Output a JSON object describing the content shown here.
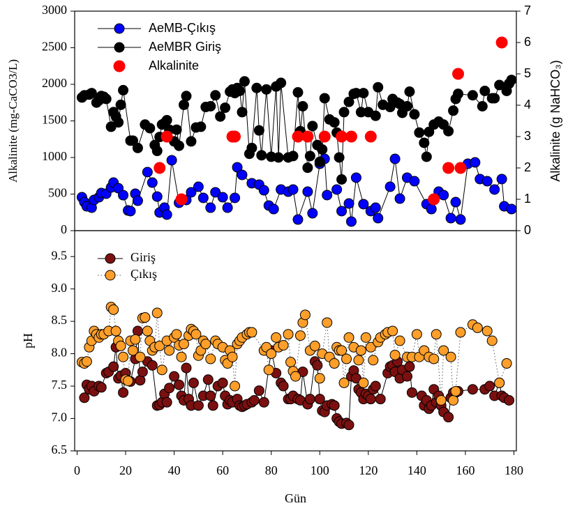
{
  "chart_data": [
    {
      "type": "line",
      "ylabel": "Alkalinite (mg-CaCO3/L)",
      "y2label": "Alkalinite (g NaHCO₃)",
      "xlim": [
        -1,
        181
      ],
      "ylim": [
        0,
        3000
      ],
      "yticks": [
        0,
        500,
        1000,
        1500,
        2000,
        2500,
        3000
      ],
      "y2lim": [
        0,
        7
      ],
      "y2ticks": [
        0,
        1,
        2,
        3,
        4,
        5,
        6,
        7
      ],
      "legend": "upper left",
      "grid": false,
      "series": [
        {
          "name": "AeMB-Çıkış",
          "color": "#0000ff",
          "x": [
            2,
            3,
            4,
            6,
            7,
            9,
            10,
            12,
            14,
            15,
            17,
            19,
            21,
            22,
            24,
            25,
            29,
            31,
            33,
            34,
            36,
            37,
            39,
            42,
            45,
            47,
            50,
            52,
            55,
            57,
            60,
            62,
            65,
            66,
            68,
            72,
            75,
            77,
            79,
            81,
            84,
            87,
            89,
            91,
            95,
            97,
            100,
            102,
            103,
            107,
            109,
            112,
            113,
            115,
            118,
            121,
            123,
            124,
            129,
            131,
            133,
            136,
            139,
            144,
            146,
            149,
            151,
            154,
            156,
            158,
            161,
            164,
            166,
            169,
            172,
            175,
            176,
            179
          ],
          "values": [
            457,
            390,
            333,
            314,
            420,
            457,
            514,
            505,
            590,
            657,
            580,
            485,
            276,
            267,
            505,
            409,
            800,
            657,
            466,
            248,
            314,
            219,
            962,
            381,
            419,
            524,
            600,
            448,
            314,
            524,
            457,
            314,
            448,
            866,
            762,
            648,
            629,
            552,
            343,
            295,
            562,
            533,
            562,
            152,
            533,
            238,
            914,
            981,
            486,
            562,
            267,
            371,
            124,
            724,
            362,
            267,
            314,
            171,
            600,
            981,
            438,
            724,
            676,
            362,
            295,
            533,
            486,
            171,
            390,
            152,
            914,
            933,
            705,
            676,
            562,
            705,
            333,
            295
          ]
        },
        {
          "name": "AeMBR Giriş",
          "color": "#000000",
          "x": [
            2,
            3,
            5,
            6,
            8,
            9,
            10,
            11,
            12,
            14,
            15,
            16,
            17,
            18,
            19,
            22,
            23,
            25,
            28,
            30,
            32,
            33,
            34,
            35,
            36,
            37,
            38,
            40,
            41,
            42,
            44,
            45,
            47,
            49,
            51,
            53,
            55,
            57,
            59,
            61,
            63,
            64,
            65,
            66,
            67,
            68,
            69,
            71,
            72,
            74,
            75,
            76,
            78,
            80,
            82,
            83,
            84,
            87,
            89,
            91,
            92,
            93,
            95,
            96,
            97,
            99,
            100,
            101,
            102,
            104,
            106,
            107,
            108,
            109,
            110,
            112,
            114,
            115,
            117,
            118,
            120,
            123,
            124,
            126,
            129,
            130,
            132,
            133,
            134,
            136,
            137,
            139,
            141,
            143,
            144,
            145,
            147,
            149,
            151,
            153,
            155,
            156,
            157,
            163,
            167,
            168,
            171,
            172,
            174,
            177,
            178,
            179
          ],
          "values": [
            1820,
            1850,
            1860,
            1880,
            1750,
            1780,
            1840,
            1830,
            1800,
            1420,
            1620,
            1560,
            1480,
            1720,
            1920,
            1230,
            1230,
            1130,
            1450,
            1400,
            1170,
            1090,
            1280,
            1450,
            1470,
            1510,
            1380,
            1220,
            1380,
            1160,
            1720,
            1840,
            1220,
            1410,
            1420,
            1690,
            1700,
            1850,
            1560,
            1680,
            1900,
            1930,
            1880,
            1950,
            1910,
            1620,
            2040,
            1050,
            1130,
            1950,
            1370,
            1030,
            1930,
            1010,
            1970,
            1000,
            2020,
            1000,
            1020,
            1890,
            1360,
            1700,
            860,
            1020,
            1430,
            1170,
            940,
            1110,
            1810,
            1520,
            1480,
            1340,
            1000,
            700,
            1620,
            1760,
            1870,
            1880,
            1620,
            1880,
            1620,
            1570,
            1960,
            1720,
            1690,
            1800,
            1750,
            1730,
            1610,
            1700,
            1900,
            1590,
            1340,
            1200,
            1010,
            1350,
            1450,
            1490,
            1450,
            1360,
            1640,
            1800,
            1870,
            1850,
            1700,
            1910,
            1810,
            1810,
            1990,
            1910,
            2010,
            2060
          ]
        },
        {
          "name": "Alkalinite",
          "color": "#ff0000",
          "axis": "y2",
          "line": false,
          "x": [
            34,
            37,
            43,
            64,
            65,
            91,
            95,
            102,
            109,
            113,
            121,
            147,
            153,
            157,
            158,
            175
          ],
          "values": [
            2,
            3,
            1,
            3,
            3,
            3,
            3,
            3,
            3,
            3,
            3,
            1,
            2,
            5,
            2,
            6
          ]
        }
      ]
    },
    {
      "type": "line",
      "ylabel": "pH",
      "xlabel": "Gün",
      "xlim": [
        -1,
        181
      ],
      "xticks": [
        0,
        20,
        40,
        60,
        80,
        100,
        120,
        140,
        160,
        180
      ],
      "ylim": [
        6.5,
        9.9
      ],
      "yticks": [
        6.5,
        {
          "value": 7,
          "label": "7.0"
        },
        7.5,
        {
          "value": 8,
          "label": "8.0"
        },
        8.5,
        {
          "value": 9,
          "label": "9.0"
        },
        9.5
      ],
      "legend": "upper left",
      "grid": false,
      "series": [
        {
          "name": "Giriş",
          "color": "#7b1010",
          "dash": "solid",
          "x": [
            3,
            4,
            5,
            6,
            7,
            9,
            10,
            12,
            13,
            15,
            16,
            17,
            18,
            19,
            20,
            22,
            24,
            25,
            26,
            27,
            29,
            31,
            33,
            34,
            35,
            36,
            37,
            38,
            40,
            42,
            43,
            44,
            45,
            46,
            47,
            48,
            50,
            52,
            54,
            55,
            56,
            58,
            60,
            61,
            62,
            63,
            64,
            66,
            67,
            68,
            69,
            70,
            72,
            73,
            75,
            77,
            80,
            82,
            84,
            85,
            87,
            88,
            89,
            91,
            92,
            93,
            95,
            96,
            98,
            99,
            100,
            101,
            102,
            103,
            105,
            106,
            107,
            108,
            109,
            111,
            112,
            113,
            114,
            115,
            116,
            117,
            118,
            119,
            120,
            121,
            122,
            123,
            125,
            128,
            129,
            130,
            131,
            132,
            133,
            134,
            136,
            137,
            138,
            142,
            143,
            144,
            145,
            146,
            147,
            148,
            149,
            150,
            151,
            153,
            154,
            155,
            156,
            157,
            163,
            168,
            170,
            172,
            174,
            175,
            176,
            178
          ],
          "values": [
            7.32,
            7.52,
            7.45,
            7.5,
            7.42,
            7.5,
            7.48,
            7.7,
            7.72,
            7.8,
            8.1,
            7.62,
            7.66,
            7.4,
            7.7,
            7.57,
            7.92,
            8.35,
            7.59,
            7.72,
            7.88,
            7.82,
            7.2,
            7.21,
            7.25,
            7.38,
            7.25,
            7.47,
            7.65,
            7.52,
            7.35,
            7.28,
            7.78,
            7.3,
            7.2,
            7.55,
            7.2,
            7.35,
            7.6,
            7.35,
            7.2,
            7.5,
            7.55,
            7.35,
            7.22,
            7.28,
            7.25,
            7.3,
            7.2,
            7.18,
            7.2,
            7.22,
            7.25,
            7.28,
            7.43,
            7.25,
            8.05,
            7.7,
            7.55,
            7.5,
            7.3,
            7.3,
            7.35,
            7.3,
            7.28,
            7.72,
            7.22,
            7.3,
            7.88,
            7.82,
            7.3,
            7.12,
            7.1,
            7.2,
            7.22,
            7.2,
            7.0,
            6.95,
            6.92,
            6.93,
            6.9,
            7.65,
            7.74,
            7.62,
            7.45,
            7.4,
            7.3,
            7.38,
            7.35,
            7.3,
            7.45,
            7.5,
            7.3,
            7.7,
            7.8,
            7.82,
            7.72,
            7.88,
            7.62,
            7.75,
            7.65,
            7.8,
            7.4,
            7.35,
            7.2,
            7.28,
            7.15,
            7.2,
            7.45,
            7.25,
            7.35,
            7.2,
            7.1,
            7.02,
            7.32,
            7.4,
            7.4,
            7.42,
            7.45,
            7.45,
            7.5,
            7.35,
            7.55,
            7.35,
            7.32,
            7.28
          ]
        },
        {
          "name": "Çıkış",
          "color": "#ff9f2a",
          "dash": "dotted",
          "x": [
            2,
            3,
            4,
            5,
            6,
            7,
            8,
            9,
            10,
            11,
            13,
            14,
            15,
            16,
            17,
            18,
            19,
            20,
            21,
            22,
            23,
            24,
            26,
            27,
            28,
            29,
            30,
            31,
            32,
            33,
            34,
            35,
            37,
            38,
            40,
            41,
            42,
            43,
            44,
            46,
            47,
            48,
            49,
            50,
            51,
            52,
            53,
            55,
            57,
            58,
            60,
            61,
            62,
            63,
            64,
            65,
            66,
            67,
            68,
            70,
            71,
            72,
            77,
            78,
            79,
            80,
            82,
            83,
            85,
            87,
            88,
            89,
            90,
            92,
            93,
            94,
            96,
            98,
            100,
            101,
            103,
            104,
            106,
            107,
            108,
            109,
            110,
            111,
            112,
            114,
            116,
            117,
            118,
            119,
            121,
            122,
            124,
            125,
            127,
            128,
            130,
            131,
            133,
            136,
            138,
            140,
            141,
            143,
            145,
            147,
            148,
            150,
            151,
            154,
            155,
            156,
            158,
            163,
            165,
            169,
            171,
            174,
            177
          ],
          "values": [
            7.87,
            7.85,
            7.88,
            8.1,
            8.2,
            8.35,
            8.3,
            8.25,
            8.3,
            8.3,
            8.35,
            8.72,
            8.68,
            8.35,
            8.2,
            8.12,
            7.95,
            7.6,
            7.58,
            8.2,
            8.05,
            8.22,
            7.95,
            8.55,
            8.56,
            8.35,
            8.2,
            8.05,
            8.1,
            8.63,
            8.12,
            7.75,
            8.2,
            8.05,
            8.25,
            8.3,
            8.13,
            7.95,
            8.15,
            8.28,
            8.38,
            8.35,
            8.3,
            7.97,
            8.05,
            8.2,
            8.15,
            7.92,
            8.2,
            8.15,
            8.1,
            7.9,
            7.85,
            8.05,
            7.95,
            7.5,
            8.15,
            8.2,
            8.25,
            8.3,
            8.33,
            8.33,
            8.05,
            8.1,
            7.75,
            8.0,
            8.25,
            8.1,
            8.13,
            8.3,
            7.87,
            7.73,
            7.65,
            8.28,
            8.48,
            8.6,
            8.05,
            8.12,
            7.62,
            8.0,
            8.48,
            7.95,
            7.85,
            8.1,
            8.05,
            8.05,
            7.55,
            7.92,
            8.25,
            8.1,
            7.9,
            8.05,
            7.55,
            8.25,
            8.1,
            7.9,
            8.18,
            8.25,
            8.3,
            8.33,
            8.35,
            7.98,
            8.2,
            7.95,
            7.95,
            8.3,
            7.95,
            8.05,
            7.95,
            7.92,
            8.3,
            7.28,
            8.05,
            7.95,
            7.28,
            7.42,
            8.33,
            8.45,
            8.4,
            8.35,
            8.2,
            7.55,
            7.85
          ]
        }
      ]
    }
  ]
}
